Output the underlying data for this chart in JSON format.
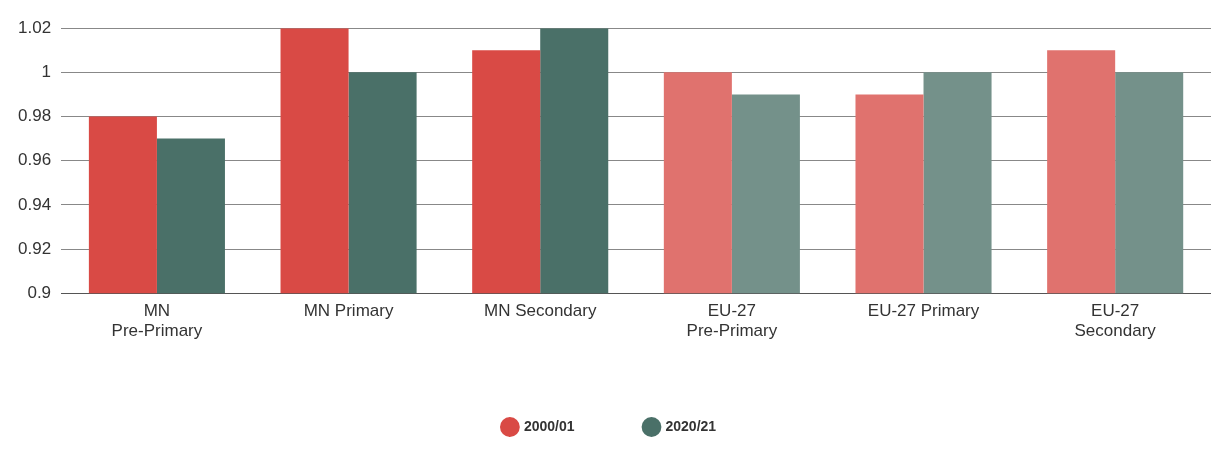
{
  "chart_data": {
    "type": "bar",
    "categories": [
      "MN\nPre-Primary",
      "MN Primary",
      "MN Secondary",
      "EU-27\nPre-Primary",
      "EU-27 Primary",
      "EU-27\nSecondary"
    ],
    "series": [
      {
        "name": "2000/01",
        "color": "#d94a45",
        "colors": [
          "#d94a45",
          "#d94a45",
          "#d94a45",
          "#e0726e",
          "#e0726e",
          "#e0726e"
        ],
        "values": [
          0.98,
          1.02,
          1.01,
          1.0,
          0.99,
          1.01
        ]
      },
      {
        "name": "2020/21",
        "color": "#4a7068",
        "colors": [
          "#4a7068",
          "#4a7068",
          "#4a7068",
          "#74918a",
          "#74918a",
          "#74918a"
        ],
        "values": [
          0.97,
          1.0,
          1.02,
          0.99,
          1.0,
          1.0
        ]
      }
    ],
    "ylim": [
      0.9,
      1.02
    ],
    "yticks": [
      0.9,
      0.92,
      0.94,
      0.96,
      0.98,
      1,
      1.02
    ],
    "grid": "y",
    "legend": "bottom"
  }
}
